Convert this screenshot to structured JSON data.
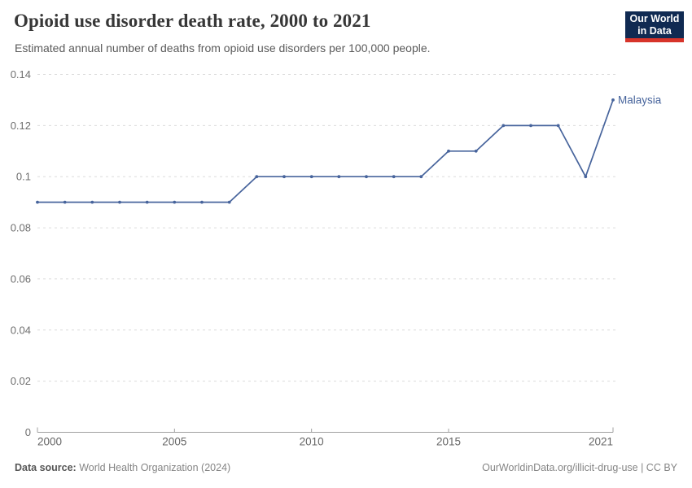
{
  "header": {
    "title": "Opioid use disorder death rate, 2000 to 2021",
    "subtitle": "Estimated annual number of deaths from opioid use disorders per 100,000 people.",
    "logo": {
      "line1": "Our World",
      "line2": "in Data"
    }
  },
  "chart_data": {
    "type": "line",
    "title": "Opioid use disorder death rate, 2000 to 2021",
    "xlabel": "",
    "ylabel": "",
    "x": [
      2000,
      2001,
      2002,
      2003,
      2004,
      2005,
      2006,
      2007,
      2008,
      2009,
      2010,
      2011,
      2012,
      2013,
      2014,
      2015,
      2016,
      2017,
      2018,
      2019,
      2020,
      2021
    ],
    "series": [
      {
        "name": "Malaysia",
        "color": "#47649c",
        "values": [
          0.09,
          0.09,
          0.09,
          0.09,
          0.09,
          0.09,
          0.09,
          0.09,
          0.1,
          0.1,
          0.1,
          0.1,
          0.1,
          0.1,
          0.1,
          0.11,
          0.11,
          0.12,
          0.12,
          0.12,
          0.1,
          0.13
        ]
      }
    ],
    "ylim": [
      0,
      0.14
    ],
    "yticks": [
      0,
      0.02,
      0.04,
      0.06,
      0.08,
      0.1,
      0.12,
      0.14
    ],
    "xticks": [
      2000,
      2005,
      2010,
      2015,
      2021
    ],
    "grid": "horizontal-dashed",
    "legend_position": "end-of-line"
  },
  "footer": {
    "datasource_label": "Data source:",
    "datasource_value": "World Health Organization (2024)",
    "attribution": "OurWorldinData.org/illicit-drug-use | CC BY"
  },
  "colors": {
    "line": "#47649c",
    "grid": "#dcdcdc",
    "axis": "#a0a0a0",
    "y_tick_label": "#6e6e6e",
    "x_tick_label": "#666666",
    "logo_bg": "#102a52",
    "logo_bar": "#d7342a"
  }
}
